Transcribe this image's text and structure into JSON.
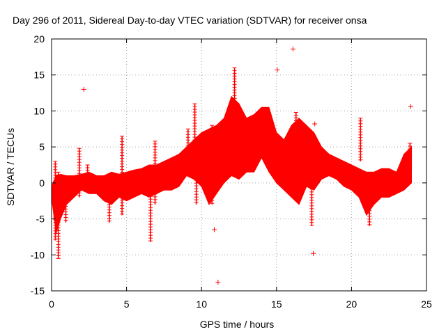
{
  "chart_data": {
    "type": "scatter",
    "title": "Day 296 of 2011, Sidereal Day-to-day VTEC variation (SDTVAR) for receiver onsa",
    "xlabel": "GPS time / hours",
    "ylabel": "SDTVAR / TECUs",
    "xlim": [
      0,
      25
    ],
    "ylim": [
      -15,
      20
    ],
    "xticks": [
      0,
      5,
      10,
      15,
      20,
      25
    ],
    "yticks": [
      -15,
      -10,
      -5,
      0,
      5,
      10,
      15,
      20
    ],
    "grid": true,
    "marker": "+",
    "color": "#ff0000",
    "band": {
      "x": [
        0.0,
        0.3,
        0.6,
        1.0,
        1.5,
        2.0,
        2.5,
        3.0,
        3.5,
        4.0,
        4.5,
        5.0,
        5.5,
        6.0,
        6.5,
        7.0,
        7.5,
        8.0,
        8.5,
        9.0,
        9.5,
        10.0,
        10.5,
        11.0,
        11.5,
        12.0,
        12.5,
        13.0,
        13.5,
        14.0,
        14.5,
        15.0,
        15.5,
        16.0,
        16.5,
        17.0,
        17.5,
        18.0,
        18.5,
        19.0,
        19.5,
        20.0,
        20.5,
        21.0,
        21.5,
        22.0,
        22.5,
        23.0,
        23.5,
        24.0
      ],
      "upper": [
        -0.5,
        1.0,
        1.2,
        1.0,
        1.0,
        1.2,
        1.5,
        1.0,
        1.0,
        1.5,
        1.2,
        1.5,
        1.8,
        2.0,
        2.5,
        2.5,
        3.0,
        3.5,
        4.0,
        5.0,
        6.0,
        7.0,
        7.5,
        8.0,
        9.0,
        12.0,
        11.0,
        9.0,
        9.5,
        10.5,
        10.5,
        7.0,
        6.0,
        8.0,
        9.0,
        8.0,
        7.0,
        5.0,
        4.0,
        3.5,
        3.0,
        2.5,
        2.0,
        1.5,
        1.5,
        2.0,
        2.0,
        1.5,
        4.0,
        5.0
      ],
      "lower": [
        -2.0,
        -7.0,
        -5.0,
        -3.0,
        -2.0,
        -1.0,
        -1.5,
        -1.5,
        -2.5,
        -3.0,
        -2.0,
        -2.5,
        -2.0,
        -1.5,
        -2.0,
        -1.5,
        -1.0,
        -1.0,
        -0.5,
        1.0,
        0.5,
        -0.5,
        -3.0,
        -1.5,
        0.0,
        1.0,
        0.5,
        1.5,
        1.5,
        3.5,
        1.5,
        0.0,
        -1.0,
        -2.0,
        -3.0,
        -0.5,
        -1.0,
        0.5,
        1.0,
        0.5,
        -0.5,
        -1.0,
        -2.0,
        -4.5,
        -3.0,
        -2.0,
        -2.0,
        -1.5,
        -1.0,
        0.0
      ]
    },
    "spikes": [
      {
        "x": 0.45,
        "low": -10.5,
        "high": 1.5
      },
      {
        "x": 0.25,
        "low": -8.0,
        "high": 3.0
      },
      {
        "x": 0.95,
        "low": -5.5,
        "high": 1.0
      },
      {
        "x": 1.85,
        "low": -2.0,
        "high": 4.8
      },
      {
        "x": 2.4,
        "low": -1.0,
        "high": 2.5
      },
      {
        "x": 3.85,
        "low": -5.5,
        "high": 0.5
      },
      {
        "x": 4.7,
        "low": -4.5,
        "high": 6.5
      },
      {
        "x": 6.6,
        "low": -8.2,
        "high": 2.0
      },
      {
        "x": 6.9,
        "low": -3.0,
        "high": 5.8
      },
      {
        "x": 9.1,
        "low": 1.5,
        "high": 7.5
      },
      {
        "x": 9.55,
        "low": 1.0,
        "high": 11.0
      },
      {
        "x": 9.65,
        "low": -3.0,
        "high": 5.0
      },
      {
        "x": 10.7,
        "low": -3.0,
        "high": 8.0
      },
      {
        "x": 12.2,
        "low": 3.0,
        "high": 16.0
      },
      {
        "x": 16.3,
        "low": -2.5,
        "high": 9.8
      },
      {
        "x": 17.35,
        "low": -6.0,
        "high": 3.0
      },
      {
        "x": 20.6,
        "low": 3.0,
        "high": 9.0
      },
      {
        "x": 21.2,
        "low": -6.0,
        "high": 0.0
      },
      {
        "x": 23.9,
        "low": 2.0,
        "high": 5.5
      }
    ],
    "outliers": [
      {
        "x": 2.15,
        "y": 13.0
      },
      {
        "x": 10.85,
        "y": -6.5
      },
      {
        "x": 11.1,
        "y": -13.8
      },
      {
        "x": 15.05,
        "y": 15.7
      },
      {
        "x": 16.1,
        "y": 18.6
      },
      {
        "x": 17.55,
        "y": 8.2
      },
      {
        "x": 17.45,
        "y": -9.8
      },
      {
        "x": 23.95,
        "y": 10.6
      }
    ]
  }
}
